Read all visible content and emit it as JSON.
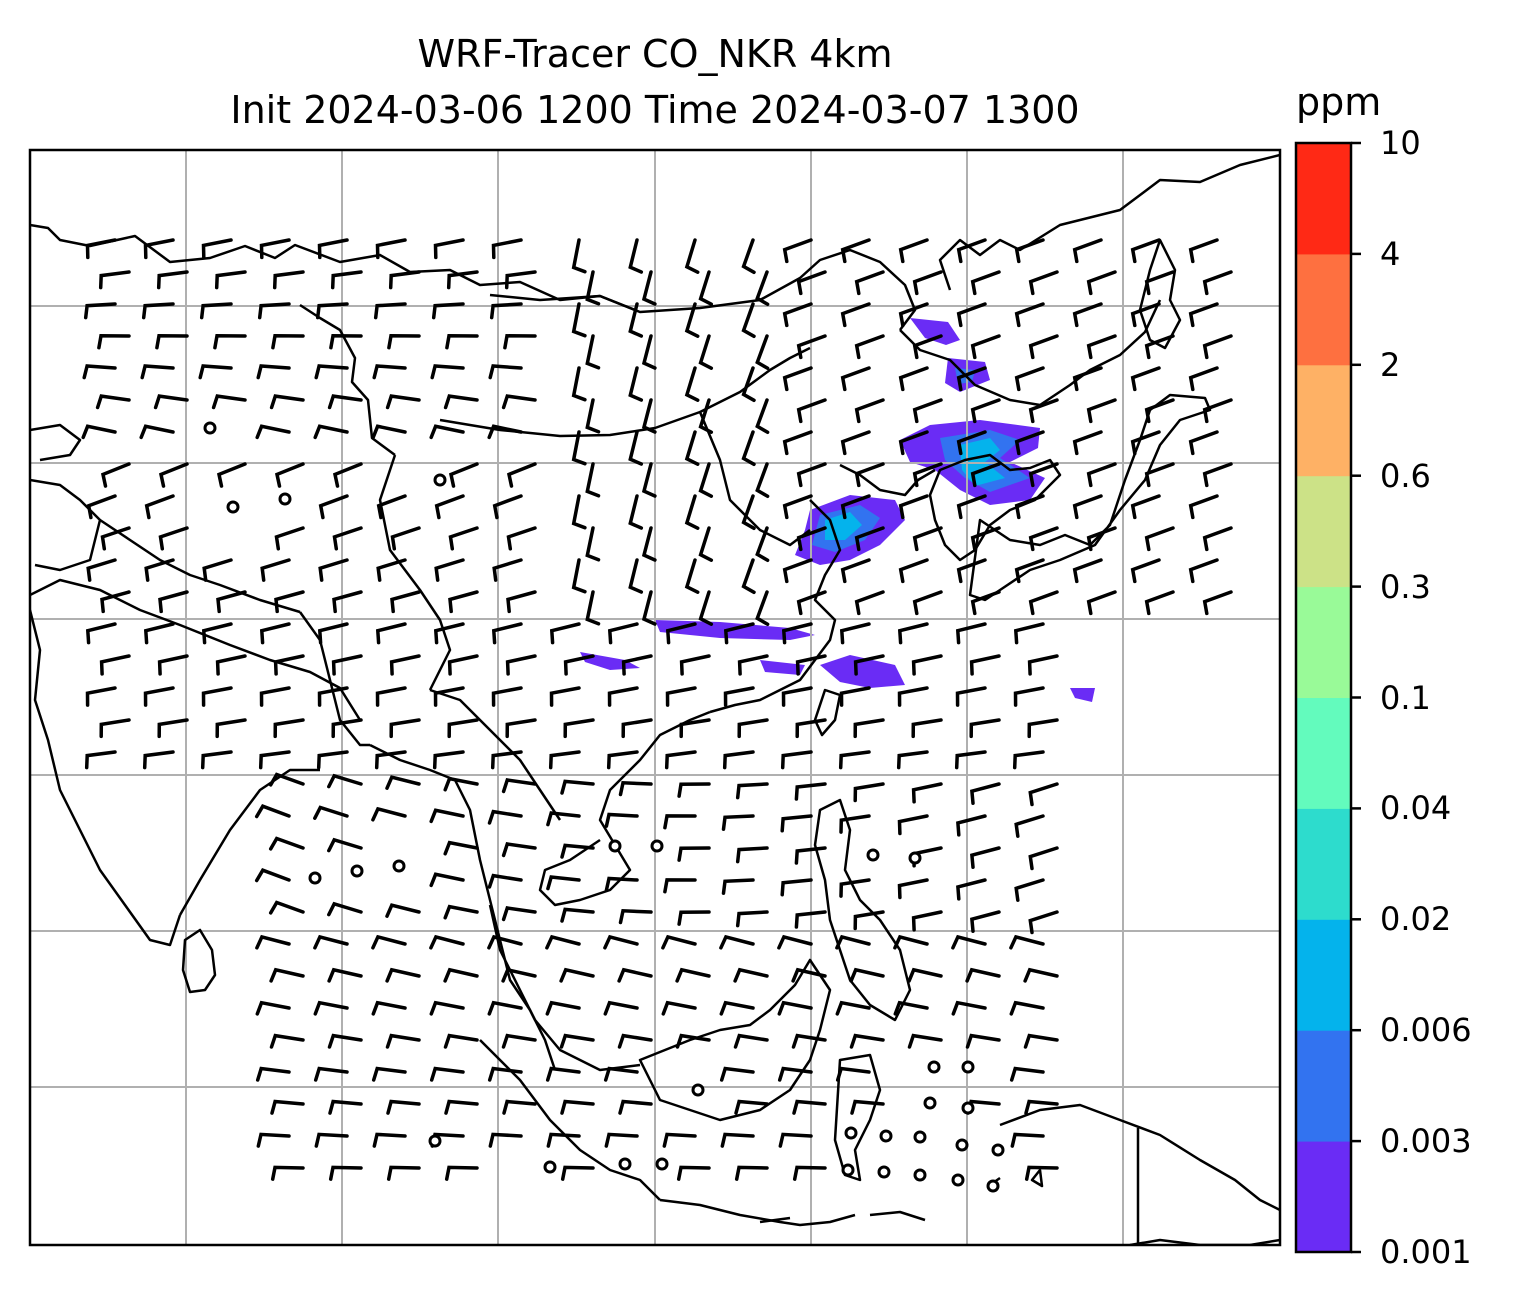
{
  "title": {
    "line1": "WRF-Tracer CO_NKR 4km",
    "line2": "Init 2024-03-06 1200 Time 2024-03-07 1300"
  },
  "colorbar": {
    "unit": "ppm",
    "levels": [
      "0.001",
      "0.003",
      "0.006",
      "0.02",
      "0.04",
      "0.1",
      "0.3",
      "0.6",
      "2",
      "4",
      "10"
    ],
    "colors": [
      "#6a2cf5",
      "#3273f0",
      "#04b3ec",
      "#2ddccd",
      "#63fbbd",
      "#99fa98",
      "#cce287",
      "#feb165",
      "#fe7040",
      "#ff2915"
    ]
  },
  "map": {
    "gridlines": true,
    "coastline_color": "#000000",
    "gridline_color": "#b0b0b0",
    "wind_barb_color": "#000000"
  }
}
